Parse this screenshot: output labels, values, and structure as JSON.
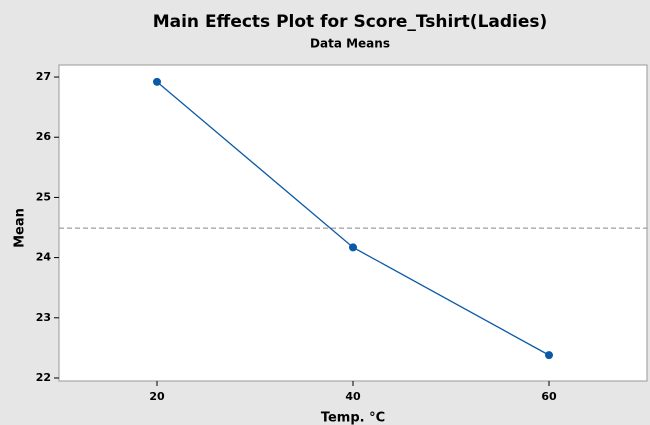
{
  "chart_data": {
    "type": "line",
    "title": "Main Effects Plot for Score_Tshirt(Ladies)",
    "subtitle": "Data Means",
    "x_label": "Temp. °C",
    "y_label": "Mean",
    "x": [
      20,
      40,
      60
    ],
    "series": [
      {
        "name": "Score_Tshirt(Ladies)",
        "color": "#0b5aa8",
        "values": [
          26.92,
          24.17,
          22.38
        ]
      }
    ],
    "reference_line": 24.49,
    "xlim": [
      10,
      70
    ],
    "xticks": [
      20,
      40,
      60
    ],
    "ylim": [
      21.95,
      27.2
    ],
    "yticks": [
      22,
      23,
      24,
      25,
      26,
      27
    ]
  }
}
